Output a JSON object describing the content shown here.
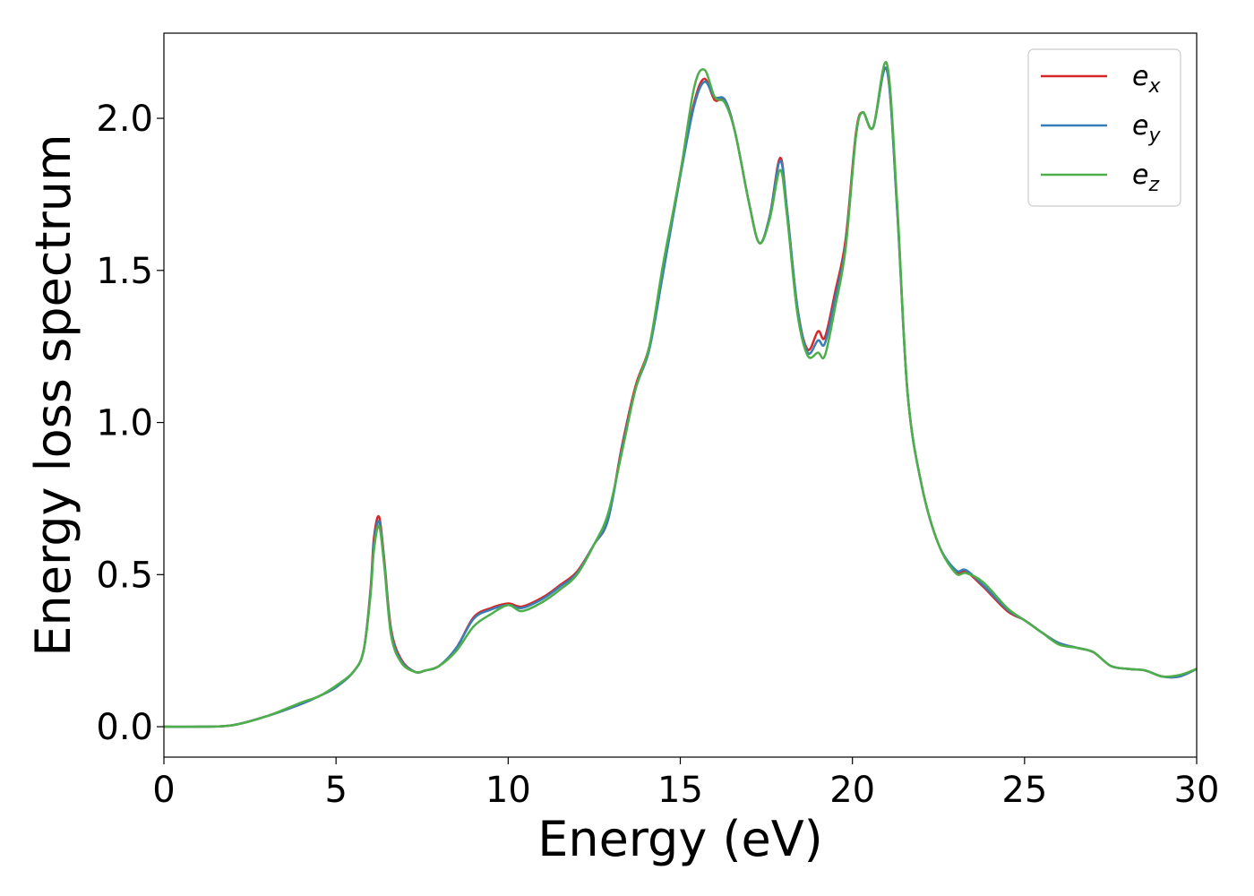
{
  "chart_data": {
    "type": "line",
    "xlabel": "Energy (eV)",
    "ylabel": "Energy loss spectrum",
    "xlim": [
      0,
      30
    ],
    "ylim": [
      -0.1,
      2.28
    ],
    "grid": false,
    "legend_position": "top-right",
    "x_ticks": [
      0,
      5,
      10,
      15,
      20,
      25,
      30
    ],
    "x_tick_labels": [
      "0",
      "5",
      "10",
      "15",
      "20",
      "25",
      "30"
    ],
    "y_ticks": [
      0.0,
      0.5,
      1.0,
      1.5,
      2.0
    ],
    "y_tick_labels": [
      "0.0",
      "0.5",
      "1.0",
      "1.5",
      "2.0"
    ],
    "x": [
      0,
      1,
      2,
      3,
      4,
      4.5,
      5,
      5.5,
      5.8,
      6.0,
      6.1,
      6.25,
      6.4,
      6.6,
      6.9,
      7.3,
      7.6,
      8.0,
      8.5,
      9.0,
      9.5,
      10.0,
      10.4,
      11.0,
      11.5,
      12.0,
      12.5,
      12.9,
      13.3,
      13.7,
      14.1,
      14.5,
      15.0,
      15.4,
      15.7,
      16.0,
      16.3,
      16.6,
      17.0,
      17.3,
      17.6,
      17.9,
      18.1,
      18.4,
      18.7,
      19.0,
      19.2,
      19.5,
      19.8,
      20.1,
      20.3,
      20.6,
      21.0,
      21.3,
      21.6,
      22.0,
      22.5,
      23.0,
      23.3,
      23.8,
      24.5,
      25.0,
      25.5,
      26.0,
      26.5,
      27.0,
      27.5,
      28.0,
      28.5,
      29.0,
      29.5,
      30.0
    ],
    "series": [
      {
        "name": "e_x",
        "label_main": "e",
        "label_sub": "x",
        "color": "#d62728",
        "values": [
          0.0,
          0.0,
          0.005,
          0.035,
          0.075,
          0.1,
          0.13,
          0.18,
          0.25,
          0.45,
          0.62,
          0.69,
          0.55,
          0.32,
          0.22,
          0.18,
          0.185,
          0.2,
          0.26,
          0.36,
          0.39,
          0.405,
          0.395,
          0.425,
          0.465,
          0.51,
          0.6,
          0.68,
          0.92,
          1.12,
          1.25,
          1.5,
          1.82,
          2.05,
          2.13,
          2.06,
          2.06,
          1.95,
          1.72,
          1.59,
          1.68,
          1.87,
          1.7,
          1.38,
          1.24,
          1.3,
          1.28,
          1.43,
          1.6,
          1.95,
          2.02,
          1.97,
          2.16,
          1.7,
          1.1,
          0.8,
          0.6,
          0.51,
          0.51,
          0.46,
          0.38,
          0.35,
          0.31,
          0.275,
          0.26,
          0.245,
          0.2,
          0.19,
          0.185,
          0.165,
          0.165,
          0.19
        ]
      },
      {
        "name": "e_y",
        "label_main": "e",
        "label_sub": "y",
        "color": "#377eb8",
        "values": [
          0.0,
          0.0,
          0.005,
          0.035,
          0.075,
          0.1,
          0.13,
          0.18,
          0.25,
          0.44,
          0.6,
          0.675,
          0.54,
          0.31,
          0.215,
          0.18,
          0.185,
          0.2,
          0.26,
          0.355,
          0.385,
          0.4,
          0.39,
          0.42,
          0.46,
          0.505,
          0.6,
          0.68,
          0.91,
          1.11,
          1.24,
          1.49,
          1.81,
          2.04,
          2.12,
          2.07,
          2.06,
          1.95,
          1.72,
          1.59,
          1.68,
          1.86,
          1.7,
          1.38,
          1.23,
          1.27,
          1.26,
          1.41,
          1.58,
          1.94,
          2.02,
          1.97,
          2.16,
          1.7,
          1.1,
          0.8,
          0.6,
          0.515,
          0.515,
          0.465,
          0.385,
          0.35,
          0.31,
          0.275,
          0.26,
          0.245,
          0.2,
          0.19,
          0.185,
          0.165,
          0.165,
          0.19
        ]
      },
      {
        "name": "e_z",
        "label_main": "e",
        "label_sub": "z",
        "color": "#4daf4a",
        "values": [
          0.0,
          0.0,
          0.005,
          0.035,
          0.08,
          0.1,
          0.135,
          0.18,
          0.25,
          0.43,
          0.58,
          0.66,
          0.53,
          0.3,
          0.21,
          0.18,
          0.185,
          0.2,
          0.25,
          0.33,
          0.37,
          0.4,
          0.38,
          0.41,
          0.45,
          0.5,
          0.6,
          0.7,
          0.9,
          1.11,
          1.25,
          1.52,
          1.82,
          2.1,
          2.16,
          2.07,
          2.05,
          1.95,
          1.72,
          1.59,
          1.67,
          1.83,
          1.68,
          1.36,
          1.22,
          1.23,
          1.22,
          1.38,
          1.57,
          1.94,
          2.02,
          1.97,
          2.18,
          1.72,
          1.1,
          0.8,
          0.6,
          0.505,
          0.505,
          0.475,
          0.39,
          0.35,
          0.31,
          0.27,
          0.26,
          0.245,
          0.2,
          0.19,
          0.185,
          0.165,
          0.17,
          0.19
        ]
      }
    ]
  }
}
